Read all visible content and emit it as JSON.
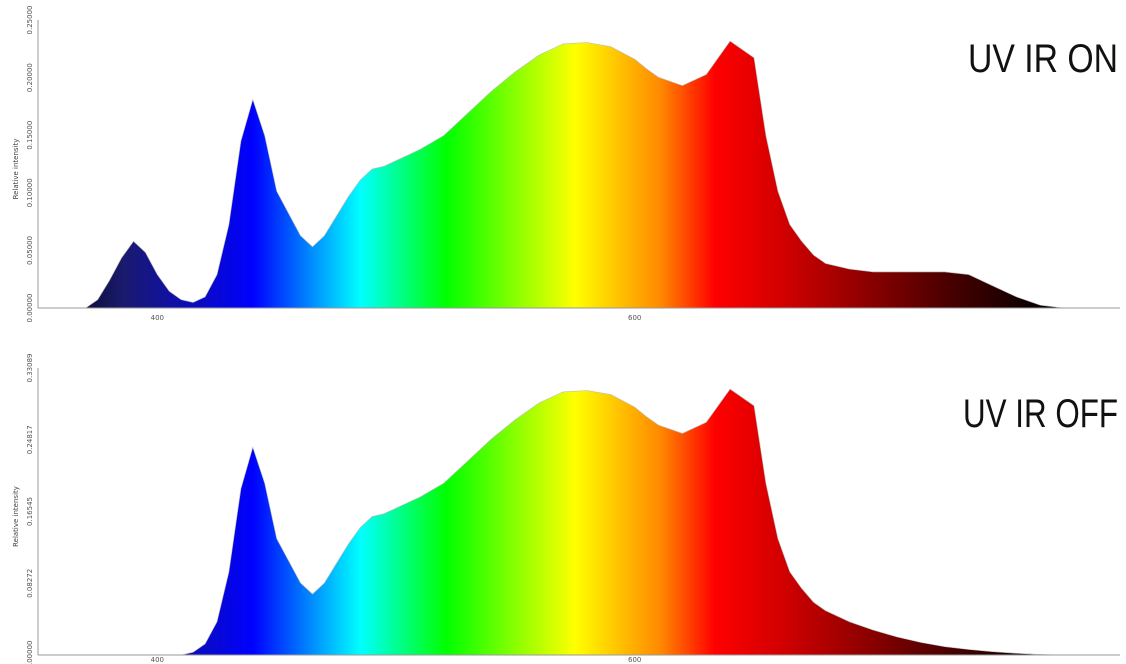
{
  "chart_data": [
    {
      "type": "area",
      "title": "UV IR ON",
      "xlabel": "",
      "ylabel": "Relative intensity",
      "y_tick_labels": [
        "0.00000",
        "0.05000",
        "0.10000",
        "0.15000",
        "0.20000",
        "0.25000"
      ],
      "x_tick_labels": [
        "400",
        "600"
      ],
      "xlim": [
        350,
        800
      ],
      "ylim": [
        0,
        1
      ],
      "grid": false,
      "fill": "spectral gradient",
      "series": [
        {
          "x": [
            370,
            375,
            380,
            385,
            390,
            395,
            400,
            405,
            410,
            415,
            420,
            425,
            430,
            435,
            440,
            445,
            450,
            455,
            460,
            465,
            470,
            475,
            480,
            485,
            490,
            495,
            500,
            505,
            510,
            520,
            530,
            540,
            550,
            560,
            570,
            580,
            590,
            600,
            605,
            610,
            620,
            630,
            640,
            650,
            655,
            660,
            665,
            670,
            675,
            680,
            690,
            700,
            710,
            720,
            730,
            740,
            750,
            760,
            770,
            780
          ],
          "y": [
            0,
            0.03,
            0.1,
            0.18,
            0.24,
            0.2,
            0.12,
            0.06,
            0.03,
            0.02,
            0.04,
            0.12,
            0.3,
            0.6,
            0.75,
            0.62,
            0.42,
            0.34,
            0.26,
            0.22,
            0.26,
            0.33,
            0.4,
            0.46,
            0.5,
            0.51,
            0.53,
            0.55,
            0.57,
            0.62,
            0.7,
            0.78,
            0.85,
            0.91,
            0.95,
            0.955,
            0.94,
            0.895,
            0.86,
            0.83,
            0.8,
            0.84,
            0.96,
            0.9,
            0.62,
            0.42,
            0.3,
            0.24,
            0.19,
            0.16,
            0.14,
            0.13,
            0.13,
            0.13,
            0.13,
            0.12,
            0.08,
            0.04,
            0.01,
            0
          ]
        }
      ]
    },
    {
      "type": "area",
      "title": "UV IR OFF",
      "xlabel": "",
      "ylabel": "Relative intensity",
      "y_tick_labels": [
        "0.00000",
        "0.08272",
        "0.16545",
        "0.24817",
        "0.33089"
      ],
      "x_tick_labels": [
        "400",
        "600"
      ],
      "xlim": [
        350,
        800
      ],
      "ylim": [
        0,
        1
      ],
      "grid": false,
      "fill": "spectral gradient",
      "series": [
        {
          "x": [
            410,
            415,
            420,
            425,
            430,
            435,
            440,
            445,
            450,
            455,
            460,
            465,
            470,
            475,
            480,
            485,
            490,
            495,
            500,
            505,
            510,
            520,
            530,
            540,
            550,
            560,
            570,
            580,
            590,
            600,
            605,
            610,
            620,
            630,
            640,
            650,
            655,
            660,
            665,
            670,
            675,
            680,
            690,
            700,
            710,
            720,
            730,
            740,
            750,
            760,
            770,
            780
          ],
          "y": [
            0,
            0.01,
            0.04,
            0.12,
            0.3,
            0.6,
            0.75,
            0.62,
            0.42,
            0.34,
            0.26,
            0.22,
            0.26,
            0.33,
            0.4,
            0.46,
            0.5,
            0.51,
            0.53,
            0.55,
            0.57,
            0.62,
            0.7,
            0.78,
            0.85,
            0.91,
            0.95,
            0.955,
            0.94,
            0.895,
            0.86,
            0.83,
            0.8,
            0.84,
            0.96,
            0.9,
            0.62,
            0.42,
            0.3,
            0.24,
            0.19,
            0.16,
            0.12,
            0.09,
            0.065,
            0.045,
            0.03,
            0.02,
            0.012,
            0.006,
            0.002,
            0
          ]
        }
      ]
    }
  ],
  "colors": {
    "background": "#ffffff",
    "axis": "#999999",
    "label_text": "#111111",
    "spectrum_stops": [
      "#000000",
      "#1a1a6e",
      "#0000ff",
      "#00ffff",
      "#00ff00",
      "#ffff00",
      "#ff8800",
      "#ff0000",
      "#cc0000",
      "#500000",
      "#000000"
    ]
  }
}
